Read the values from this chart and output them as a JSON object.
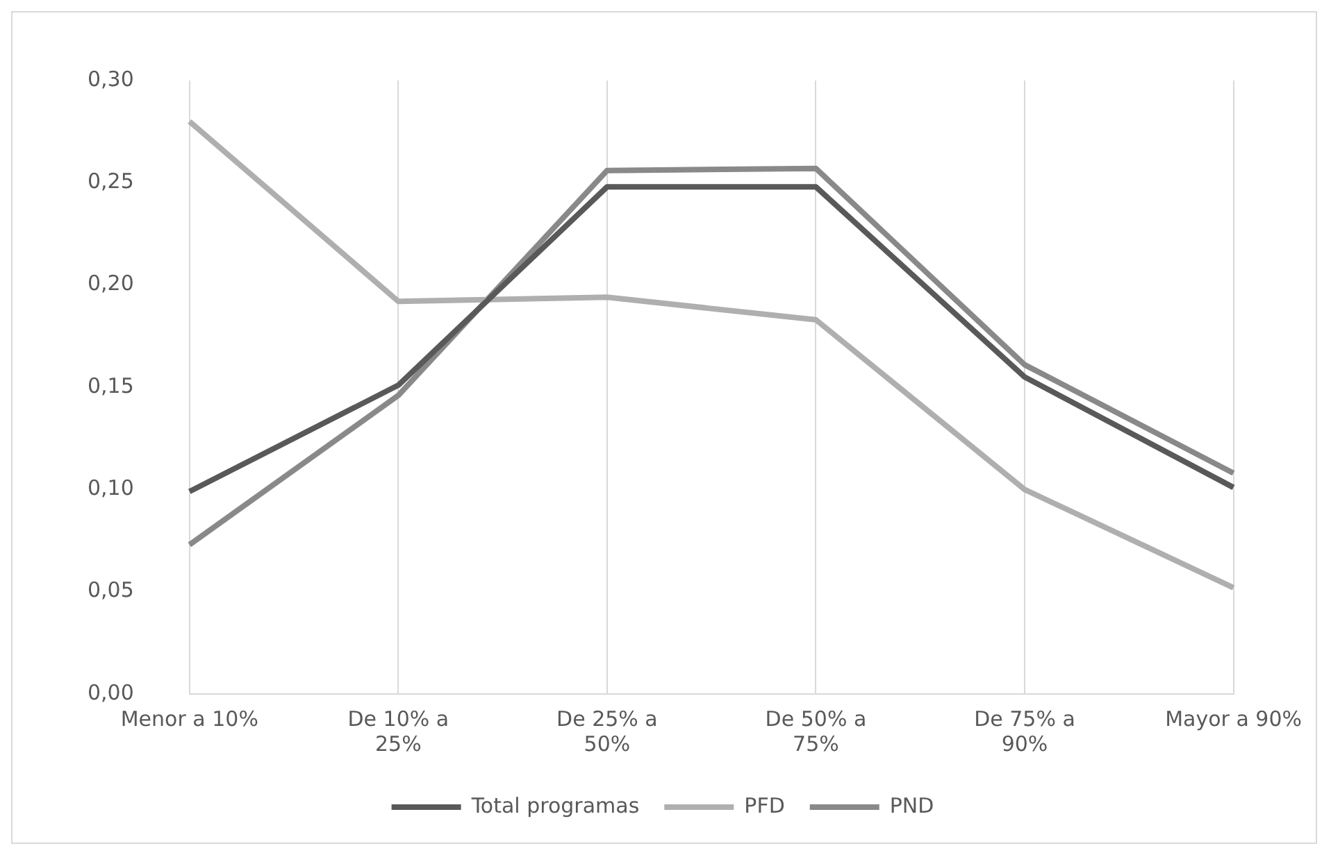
{
  "chart_data": {
    "type": "line",
    "categories": [
      "Menor a 10%",
      "De 10% a 25%",
      "De 25% a 50%",
      "De 50% a 75%",
      "De 75% a 90%",
      "Mayor a 90%"
    ],
    "series": [
      {
        "name": "Total programas",
        "color": "#595959",
        "values": [
          0.099,
          0.151,
          0.248,
          0.248,
          0.155,
          0.101
        ]
      },
      {
        "name": "PFD",
        "color": "#afafaf",
        "values": [
          0.28,
          0.192,
          0.194,
          0.183,
          0.1,
          0.052
        ]
      },
      {
        "name": "PND",
        "color": "#898989",
        "values": [
          0.073,
          0.146,
          0.256,
          0.257,
          0.161,
          0.108
        ]
      }
    ],
    "ylim": [
      0,
      0.3
    ],
    "yticks": [
      {
        "value": 0,
        "label": "0,00"
      },
      {
        "value": 0.05,
        "label": "0,05"
      },
      {
        "value": 0.1,
        "label": "0,10"
      },
      {
        "value": 0.15,
        "label": "0,15"
      },
      {
        "value": 0.2,
        "label": "0,20"
      },
      {
        "value": 0.25,
        "label": "0,25"
      },
      {
        "value": 0.3,
        "label": "0,30"
      }
    ],
    "grid": "x",
    "legend": "bottom",
    "marker": "none",
    "line_style": "solid"
  }
}
